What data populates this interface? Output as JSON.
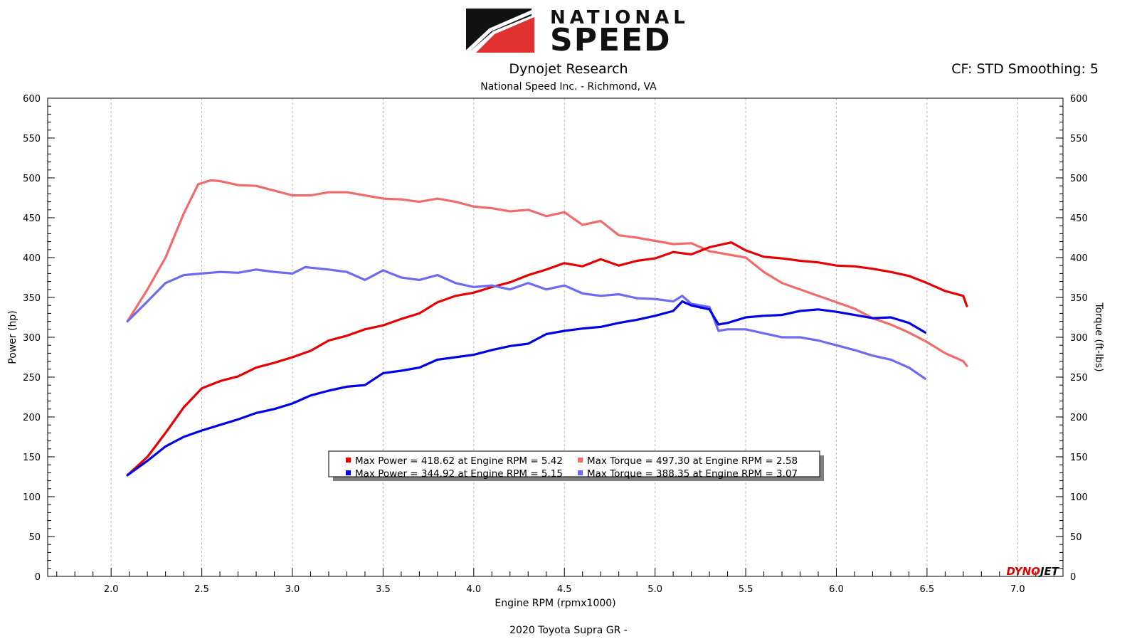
{
  "header": {
    "logo_top": "NATIONAL",
    "logo_bottom": "SPEED",
    "title": "Dynojet Research",
    "subtitle": "National Speed Inc. - Richmond, VA",
    "cf": "CF: STD Smoothing: 5",
    "footer": "2020 Toyota Supra GR -",
    "brand_mark": "DYNOJET"
  },
  "colors": {
    "power_1": "#e60000",
    "torque_1": "#f26b6b",
    "power_2": "#0000e6",
    "torque_2": "#6b6bf2"
  },
  "chart_data": {
    "type": "line",
    "xlabel": "Engine RPM (rpmx1000)",
    "ylabel_left": "Power (hp)",
    "ylabel_right": "Torque (ft-lbs)",
    "xlim": [
      1.65,
      7.25
    ],
    "ylim": [
      0,
      600
    ],
    "xticks": [
      "2.0",
      "2.5",
      "3.0",
      "3.5",
      "4.0",
      "4.5",
      "5.0",
      "5.5",
      "6.0",
      "6.5",
      "7.0"
    ],
    "yticks": [
      "0",
      "50",
      "100",
      "150",
      "200",
      "250",
      "300",
      "350",
      "400",
      "450",
      "500",
      "550",
      "600"
    ],
    "grid": "vertical",
    "legend_position": "center",
    "legend": [
      {
        "text": "Max Power = 418.62 at Engine RPM = 5.42",
        "color": "power_1"
      },
      {
        "text": "Max Torque = 497.30 at Engine RPM = 2.58",
        "color": "torque_1"
      },
      {
        "text": "Max Power = 344.92 at Engine RPM = 5.15",
        "color": "power_2"
      },
      {
        "text": "Max Torque = 388.35 at Engine RPM = 3.07",
        "color": "torque_2"
      }
    ],
    "series": [
      {
        "color": "torque_1",
        "x": [
          2.09,
          2.2,
          2.3,
          2.4,
          2.48,
          2.55,
          2.6,
          2.7,
          2.8,
          2.9,
          3.0,
          3.1,
          3.2,
          3.3,
          3.4,
          3.5,
          3.6,
          3.7,
          3.8,
          3.9,
          4.0,
          4.1,
          4.2,
          4.3,
          4.4,
          4.5,
          4.6,
          4.7,
          4.8,
          4.9,
          5.0,
          5.1,
          5.2,
          5.3,
          5.4,
          5.5,
          5.6,
          5.7,
          5.8,
          5.9,
          6.0,
          6.1,
          6.2,
          6.3,
          6.4,
          6.5,
          6.6,
          6.7,
          6.72
        ],
        "y": [
          320,
          360,
          400,
          455,
          492,
          497,
          496,
          491,
          490,
          484,
          478,
          478,
          482,
          482,
          478,
          474,
          473,
          470,
          474,
          470,
          464,
          462,
          458,
          460,
          452,
          457,
          441,
          446,
          428,
          425,
          421,
          417,
          418,
          408,
          404,
          400,
          382,
          368,
          360,
          352,
          344,
          336,
          324,
          316,
          306,
          294,
          280,
          270,
          264
        ]
      },
      {
        "color": "power_1",
        "x": [
          2.09,
          2.2,
          2.3,
          2.4,
          2.5,
          2.6,
          2.7,
          2.8,
          2.9,
          3.0,
          3.1,
          3.2,
          3.3,
          3.4,
          3.5,
          3.6,
          3.7,
          3.8,
          3.9,
          4.0,
          4.1,
          4.2,
          4.3,
          4.4,
          4.5,
          4.6,
          4.7,
          4.8,
          4.9,
          5.0,
          5.1,
          5.2,
          5.3,
          5.42,
          5.5,
          5.6,
          5.7,
          5.8,
          5.9,
          6.0,
          6.1,
          6.2,
          6.3,
          6.4,
          6.5,
          6.6,
          6.7,
          6.72
        ],
        "y": [
          127,
          150,
          180,
          212,
          236,
          245,
          251,
          262,
          268,
          275,
          283,
          296,
          302,
          310,
          315,
          323,
          330,
          344,
          352,
          356,
          363,
          369,
          378,
          385,
          393,
          389,
          398,
          390,
          396,
          399,
          407,
          404,
          413,
          419,
          409,
          401,
          399,
          396,
          394,
          390,
          389,
          386,
          382,
          377,
          368,
          358,
          352,
          339
        ]
      },
      {
        "color": "torque_2",
        "x": [
          2.09,
          2.2,
          2.3,
          2.4,
          2.5,
          2.6,
          2.7,
          2.8,
          2.9,
          3.0,
          3.07,
          3.2,
          3.3,
          3.4,
          3.5,
          3.6,
          3.7,
          3.8,
          3.9,
          4.0,
          4.1,
          4.2,
          4.3,
          4.4,
          4.5,
          4.6,
          4.7,
          4.8,
          4.9,
          5.0,
          5.1,
          5.15,
          5.2,
          5.3,
          5.35,
          5.4,
          5.5,
          5.6,
          5.7,
          5.8,
          5.9,
          6.0,
          6.1,
          6.2,
          6.3,
          6.4,
          6.49
        ],
        "y": [
          320,
          345,
          368,
          378,
          380,
          382,
          381,
          385,
          382,
          380,
          388,
          385,
          382,
          372,
          384,
          375,
          372,
          378,
          368,
          363,
          365,
          360,
          368,
          360,
          365,
          355,
          352,
          354,
          349,
          348,
          345,
          352,
          342,
          338,
          308,
          310,
          310,
          305,
          300,
          300,
          296,
          290,
          284,
          277,
          272,
          262,
          248
        ]
      },
      {
        "color": "power_2",
        "x": [
          2.09,
          2.2,
          2.3,
          2.4,
          2.5,
          2.6,
          2.7,
          2.8,
          2.9,
          3.0,
          3.1,
          3.2,
          3.3,
          3.4,
          3.5,
          3.6,
          3.7,
          3.8,
          3.9,
          4.0,
          4.1,
          4.2,
          4.3,
          4.4,
          4.5,
          4.6,
          4.7,
          4.8,
          4.9,
          5.0,
          5.1,
          5.15,
          5.2,
          5.3,
          5.35,
          5.4,
          5.5,
          5.6,
          5.7,
          5.8,
          5.9,
          6.0,
          6.1,
          6.2,
          6.3,
          6.4,
          6.49
        ],
        "y": [
          127,
          145,
          163,
          175,
          183,
          190,
          197,
          205,
          210,
          217,
          227,
          233,
          238,
          240,
          255,
          258,
          262,
          272,
          275,
          278,
          284,
          289,
          292,
          304,
          308,
          311,
          313,
          318,
          322,
          327,
          333,
          345,
          340,
          335,
          316,
          318,
          325,
          327,
          328,
          333,
          335,
          332,
          328,
          324,
          325,
          318,
          306
        ]
      }
    ]
  }
}
